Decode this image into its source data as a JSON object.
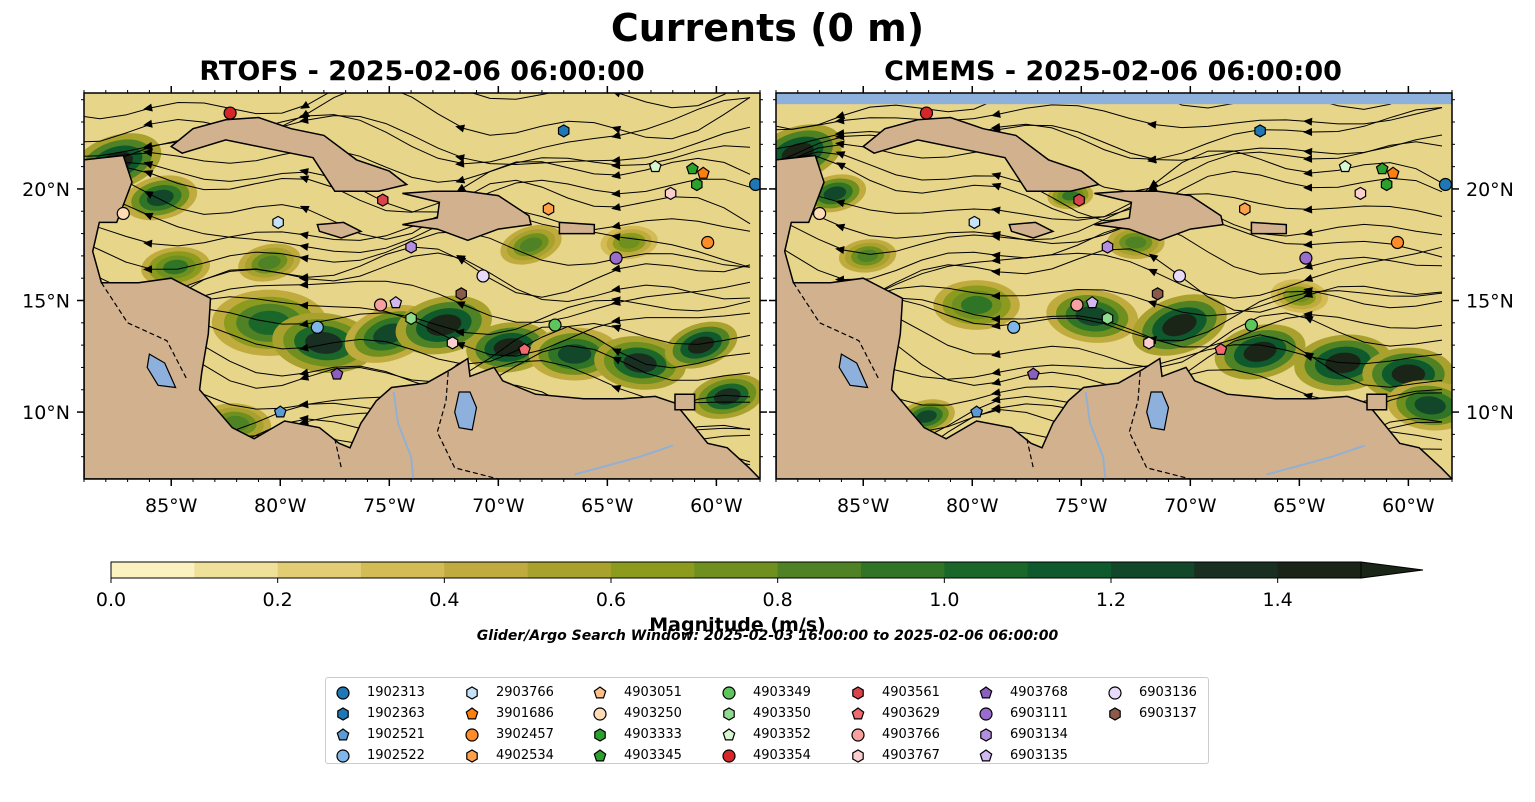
{
  "title": "Currents (0 m)",
  "panels": [
    {
      "id": "rtofs",
      "title": "RTOFS - 2025-02-06 06:00:00",
      "fill_top": false
    },
    {
      "id": "cmems",
      "title": "CMEMS - 2025-02-06 06:00:00",
      "fill_top": true
    }
  ],
  "map": {
    "lon_range": [
      -89,
      -58
    ],
    "lat_range": [
      7,
      24.3
    ],
    "lon_ticks": [
      -85,
      -80,
      -75,
      -70,
      -65,
      -60
    ],
    "lon_tick_labels": [
      "85°W",
      "80°W",
      "75°W",
      "70°W",
      "65°W",
      "60°W"
    ],
    "lat_ticks": [
      10,
      15,
      20
    ],
    "lat_tick_labels": [
      "10°N",
      "15°N",
      "20°N"
    ],
    "land_color": "#d2b28e",
    "water_color": "#8eb0dc",
    "ocean_base_color": "#e7d58a"
  },
  "colorbar": {
    "label": "Magnitude (m/s)",
    "min": 0.0,
    "max": 1.5,
    "tick_values": [
      0.0,
      0.2,
      0.4,
      0.6,
      0.8,
      1.0,
      1.2,
      1.4
    ],
    "tick_labels": [
      "0.0",
      "0.2",
      "0.4",
      "0.6",
      "0.8",
      "1.0",
      "1.2",
      "1.4"
    ],
    "colors": [
      "#faf3c0",
      "#efe19a",
      "#e2cd75",
      "#d3bb56",
      "#c0ac3e",
      "#a8a12d",
      "#8c9a1e",
      "#6f8f1e",
      "#4f8224",
      "#307526",
      "#1b672a",
      "#0f5a2c",
      "#12472a",
      "#182f22",
      "#1a2518"
    ],
    "extend": "max"
  },
  "search_window": "Glider/Argo Search Window: 2025-02-03 16:00:00 to 2025-02-06 06:00:00",
  "legend": [
    {
      "id": "1902313",
      "color": "#1f77b4",
      "marker": "circle"
    },
    {
      "id": "1902363",
      "color": "#1f77b4",
      "marker": "hexagon"
    },
    {
      "id": "1902521",
      "color": "#5b9bd5",
      "marker": "pentagon"
    },
    {
      "id": "1902522",
      "color": "#7fb8e8",
      "marker": "circle"
    },
    {
      "id": "2903766",
      "color": "#c6e2f7",
      "marker": "hexagon"
    },
    {
      "id": "3901686",
      "color": "#ff7f0e",
      "marker": "pentagon"
    },
    {
      "id": "3902457",
      "color": "#ff8c2a",
      "marker": "circle"
    },
    {
      "id": "4902534",
      "color": "#ffa04a",
      "marker": "hexagon"
    },
    {
      "id": "4903051",
      "color": "#ffc08a",
      "marker": "pentagon"
    },
    {
      "id": "4903250",
      "color": "#ffdcb5",
      "marker": "circle"
    },
    {
      "id": "4903333",
      "color": "#2ca02c",
      "marker": "hexagon"
    },
    {
      "id": "4903345",
      "color": "#2ca02c",
      "marker": "pentagon"
    },
    {
      "id": "4903349",
      "color": "#5ec45e",
      "marker": "circle"
    },
    {
      "id": "4903350",
      "color": "#8fdc8f",
      "marker": "hexagon"
    },
    {
      "id": "4903352",
      "color": "#d6f7d0",
      "marker": "pentagon"
    },
    {
      "id": "4903354",
      "color": "#d62728",
      "marker": "circle"
    },
    {
      "id": "4903561",
      "color": "#d9434a",
      "marker": "hexagon"
    },
    {
      "id": "4903629",
      "color": "#f06a70",
      "marker": "pentagon"
    },
    {
      "id": "4903766",
      "color": "#f7a0a0",
      "marker": "circle"
    },
    {
      "id": "4903767",
      "color": "#fbcfcf",
      "marker": "hexagon"
    },
    {
      "id": "4903768",
      "color": "#8c5ec0",
      "marker": "pentagon"
    },
    {
      "id": "6903111",
      "color": "#9a6ccc",
      "marker": "circle"
    },
    {
      "id": "6903134",
      "color": "#b48fe0",
      "marker": "hexagon"
    },
    {
      "id": "6903135",
      "color": "#d2b8f0",
      "marker": "pentagon"
    },
    {
      "id": "6903136",
      "color": "#e8dbfa",
      "marker": "circle"
    },
    {
      "id": "6903137",
      "color": "#8c5a4a",
      "marker": "hexagon"
    }
  ],
  "floats": [
    {
      "id": "4903354",
      "lon": -82.3,
      "lat": 23.4
    },
    {
      "id": "4903250",
      "lon": -87.2,
      "lat": 18.9
    },
    {
      "id": "2903766",
      "lon": -80.1,
      "lat": 18.5
    },
    {
      "id": "4903561",
      "lon": -75.3,
      "lat": 19.5
    },
    {
      "id": "1902363",
      "lon": -67.0,
      "lat": 22.6
    },
    {
      "id": "4903352",
      "lon": -62.8,
      "lat": 21.0
    },
    {
      "id": "4903345",
      "lon": -61.1,
      "lat": 20.9
    },
    {
      "id": "3901686",
      "lon": -60.6,
      "lat": 20.7
    },
    {
      "id": "4903333",
      "lon": -60.9,
      "lat": 20.2
    },
    {
      "id": "4903767",
      "lon": -62.1,
      "lat": 19.8
    },
    {
      "id": "1902313",
      "lon": -58.2,
      "lat": 20.2
    },
    {
      "id": "4902534",
      "lon": -67.7,
      "lat": 19.1
    },
    {
      "id": "6903134",
      "lon": -74.0,
      "lat": 17.4
    },
    {
      "id": "6903136",
      "lon": -70.7,
      "lat": 16.1
    },
    {
      "id": "6903111",
      "lon": -64.6,
      "lat": 16.9
    },
    {
      "id": "3902457",
      "lon": -60.4,
      "lat": 17.6
    },
    {
      "id": "4903766",
      "lon": -75.4,
      "lat": 14.8
    },
    {
      "id": "6903135",
      "lon": -74.7,
      "lat": 14.9
    },
    {
      "id": "6903137",
      "lon": -71.7,
      "lat": 15.3
    },
    {
      "id": "4903350",
      "lon": -74.0,
      "lat": 14.2
    },
    {
      "id": "1902522",
      "lon": -78.3,
      "lat": 13.8
    },
    {
      "id": "4903349",
      "lon": -67.4,
      "lat": 13.9
    },
    {
      "id": "4903767",
      "lon": -72.1,
      "lat": 13.1
    },
    {
      "id": "4903629",
      "lon": -68.8,
      "lat": 12.8
    },
    {
      "id": "4903768",
      "lon": -77.4,
      "lat": 11.7
    },
    {
      "id": "1902521",
      "lon": -80.0,
      "lat": 10.0
    }
  ]
}
